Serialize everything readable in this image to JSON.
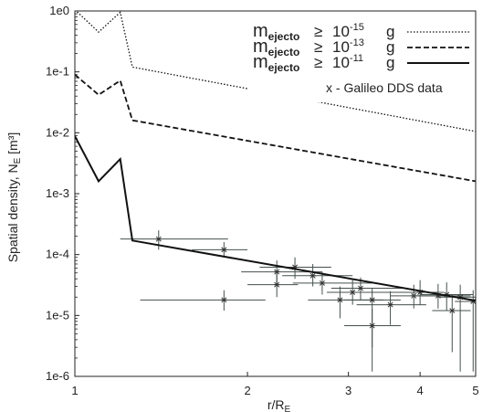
{
  "chart_data": {
    "type": "line",
    "xlabel": "r/R",
    "xlabel_sub": "E",
    "ylabel": "Spatial density, N",
    "ylabel_sub": "E",
    "ylabel_unit": " [m³]",
    "x_scale": "log",
    "y_scale": "log",
    "xlim": [
      1,
      5
    ],
    "ylim": [
      1e-06,
      1
    ],
    "x_ticks": [
      {
        "value": 1,
        "label": "1"
      },
      {
        "value": 2,
        "label": "2"
      },
      {
        "value": 3,
        "label": "3"
      },
      {
        "value": 4,
        "label": "4"
      },
      {
        "value": 5,
        "label": "5"
      }
    ],
    "y_ticks": [
      {
        "value": 1,
        "label": "1e0"
      },
      {
        "value": 0.1,
        "label": "1e-1"
      },
      {
        "value": 0.01,
        "label": "1e-2"
      },
      {
        "value": 0.001,
        "label": "1e-3"
      },
      {
        "value": 0.0001,
        "label": "1e-4"
      },
      {
        "value": 1e-05,
        "label": "1e-5"
      },
      {
        "value": 1e-06,
        "label": "1e-6"
      }
    ],
    "legend": {
      "position": "top-right",
      "entries": [
        {
          "label": "m",
          "sub": "ejecto",
          "rel": "≥",
          "value": "10",
          "exp": "-15",
          "unit": "g",
          "style": "dotted"
        },
        {
          "label": "m",
          "sub": "ejecto",
          "rel": "≥",
          "value": "10",
          "exp": "-13",
          "unit": "g",
          "style": "dashed"
        },
        {
          "label": "m",
          "sub": "ejecto",
          "rel": "≥",
          "value": "10",
          "exp": "-11",
          "unit": "g",
          "style": "solid"
        }
      ],
      "note": "x - Galileo DDS data"
    },
    "series": [
      {
        "style": "dotted",
        "points": [
          [
            1,
            1.05
          ],
          [
            1.1,
            0.45
          ],
          [
            1.2,
            0.95
          ],
          [
            1.26,
            0.12
          ],
          [
            5,
            0.0105
          ]
        ]
      },
      {
        "style": "dashed",
        "points": [
          [
            1,
            0.09
          ],
          [
            1.1,
            0.042
          ],
          [
            1.2,
            0.072
          ],
          [
            1.26,
            0.016
          ],
          [
            5,
            0.0016
          ]
        ]
      },
      {
        "style": "solid",
        "points": [
          [
            1,
            0.0088
          ],
          [
            1.1,
            0.0016
          ],
          [
            1.2,
            0.0037
          ],
          [
            1.26,
            0.00017
          ],
          [
            5,
            1.75e-05
          ]
        ]
      }
    ],
    "galileo_data": [
      {
        "x": 1.4,
        "y": 0.00018,
        "xerr": [
          1.2,
          1.85
        ],
        "yerr": [
          0.00012,
          0.00025
        ]
      },
      {
        "x": 1.82,
        "y": 0.00012,
        "xerr": [
          1.6,
          2.0
        ],
        "yerr": [
          9e-05,
          0.00016
        ]
      },
      {
        "x": 1.82,
        "y": 1.8e-05,
        "xerr": [
          1.3,
          2.15
        ],
        "yerr": [
          1.2e-05,
          2.6e-05
        ]
      },
      {
        "x": 2.25,
        "y": 5.2e-05,
        "xerr": [
          1.95,
          2.7
        ],
        "yerr": [
          3.3e-05,
          8e-05
        ]
      },
      {
        "x": 2.25,
        "y": 3.2e-05,
        "xerr": [
          2.0,
          2.45
        ],
        "yerr": [
          2e-05,
          5e-05
        ]
      },
      {
        "x": 2.42,
        "y": 6.2e-05,
        "xerr": [
          2.1,
          2.8
        ],
        "yerr": [
          4e-05,
          9e-05
        ]
      },
      {
        "x": 2.6,
        "y": 4.5e-05,
        "xerr": [
          2.3,
          3.05
        ],
        "yerr": [
          3e-05,
          7e-05
        ]
      },
      {
        "x": 2.7,
        "y": 3.4e-05,
        "xerr": [
          2.4,
          3.3
        ],
        "yerr": [
          2.2e-05,
          5.2e-05
        ]
      },
      {
        "x": 2.9,
        "y": 1.8e-05,
        "xerr": [
          2.55,
          3.45
        ],
        "yerr": [
          9e-06,
          3e-05
        ]
      },
      {
        "x": 3.05,
        "y": 2.4e-05,
        "xerr": [
          2.75,
          3.7
        ],
        "yerr": [
          1.5e-05,
          3.8e-05
        ]
      },
      {
        "x": 3.15,
        "y": 2.8e-05,
        "xerr": [
          2.8,
          3.8
        ],
        "yerr": [
          1.8e-05,
          4.2e-05
        ]
      },
      {
        "x": 3.3,
        "y": 1.8e-05,
        "xerr": [
          2.95,
          3.7
        ],
        "yerr": [
          1.2e-06,
          2.8e-05
        ]
      },
      {
        "x": 3.3,
        "y": 6.8e-06,
        "xerr": [
          2.95,
          3.7
        ],
        "yerr": [
          3e-06,
          1.3e-05
        ]
      },
      {
        "x": 3.55,
        "y": 1.5e-05,
        "xerr": [
          3.1,
          4.1
        ],
        "yerr": [
          7e-06,
          2.5e-05
        ]
      },
      {
        "x": 3.9,
        "y": 2.1e-05,
        "xerr": [
          3.55,
          4.35
        ],
        "yerr": [
          1.3e-05,
          3.2e-05
        ]
      },
      {
        "x": 4.0,
        "y": 2.4e-05,
        "xerr": [
          3.6,
          4.4
        ],
        "yerr": [
          1.5e-05,
          3.8e-05
        ]
      },
      {
        "x": 4.3,
        "y": 2.1e-05,
        "xerr": [
          3.85,
          4.9
        ],
        "yerr": [
          1.3e-05,
          3.3e-05
        ]
      },
      {
        "x": 4.45,
        "y": 2.2e-05,
        "xerr": [
          4.0,
          4.95
        ],
        "yerr": [
          1.2e-05,
          3.5e-05
        ]
      },
      {
        "x": 4.55,
        "y": 1.2e-05,
        "xerr": [
          4.2,
          4.9
        ],
        "yerr": [
          2.5e-06,
          2.2e-05
        ]
      },
      {
        "x": 4.7,
        "y": 2e-05,
        "xerr": [
          4.3,
          5.0
        ],
        "yerr": [
          1.2e-06,
          3.2e-05
        ]
      },
      {
        "x": 4.95,
        "y": 1.7e-05,
        "xerr": [
          4.6,
          5.0
        ],
        "yerr": [
          1.2e-06,
          2.6e-05
        ]
      }
    ]
  }
}
